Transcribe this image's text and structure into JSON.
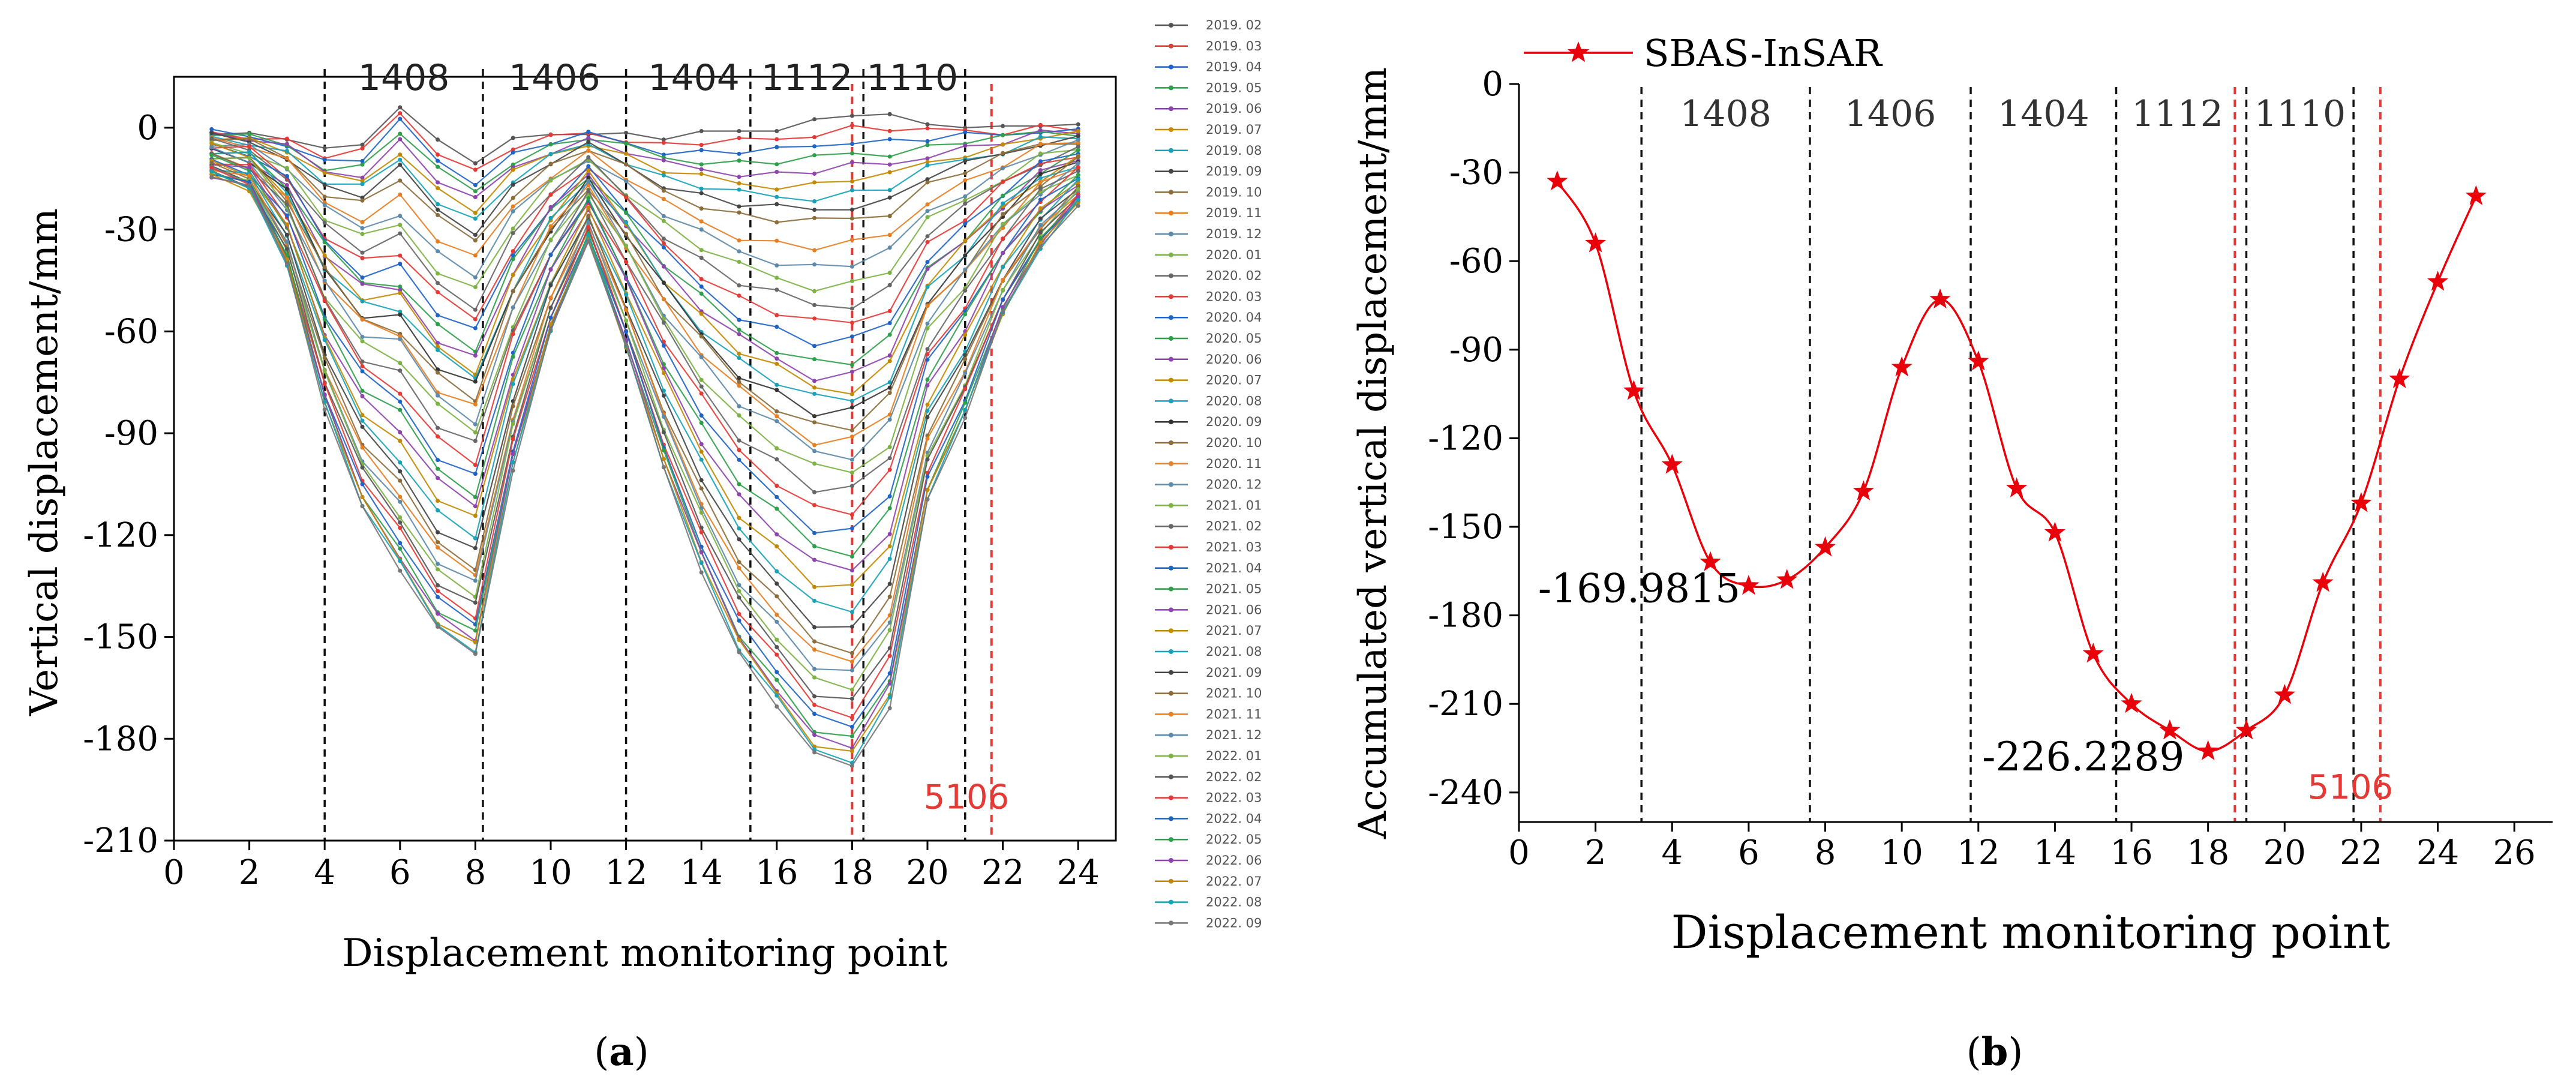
{
  "chart_data": [
    {
      "id": "a",
      "type": "line",
      "panel_label": "a",
      "xlabel": "Displacement monitoring point",
      "ylabel": "Vertical displacement/mm",
      "xlim": [
        0,
        25
      ],
      "ylim": [
        -210,
        15
      ],
      "xticks": [
        0,
        2,
        4,
        6,
        8,
        10,
        12,
        14,
        16,
        18,
        20,
        22,
        24
      ],
      "yticks": [
        0,
        -30,
        -60,
        -90,
        -120,
        -150,
        -180,
        -210
      ],
      "zone_lines": [
        4,
        8.2,
        12,
        15.3,
        18.3,
        21
      ],
      "red_lines": [
        18,
        21.7
      ],
      "zone_labels": [
        {
          "text": "1408",
          "x": 6.1
        },
        {
          "text": "1406",
          "x": 10.1
        },
        {
          "text": "1404",
          "x": 13.8
        },
        {
          "text": "1112",
          "x": 16.8
        },
        {
          "text": "1110",
          "x": 19.6
        }
      ],
      "red_label": {
        "text": "5106",
        "x": 19.9,
        "y": -197
      },
      "x": [
        1,
        2,
        3,
        4,
        5,
        6,
        7,
        8,
        9,
        10,
        11,
        12,
        13,
        14,
        15,
        16,
        17,
        18,
        19,
        20,
        21,
        22,
        23,
        24
      ],
      "final_profile": [
        -14,
        -18,
        -40,
        -82,
        -112,
        -130,
        -148,
        -155,
        -100,
        -60,
        -33,
        -65,
        -100,
        -130,
        -155,
        -170,
        -185,
        -188,
        -170,
        -110,
        -85,
        -55,
        -35,
        -22
      ],
      "early_profile": [
        -1,
        -2,
        -3,
        -7,
        -5,
        7,
        -4,
        -10,
        -4,
        -2,
        -1,
        -2,
        -3,
        -2,
        -1,
        0,
        2,
        4,
        3,
        1,
        1,
        0,
        1,
        0
      ],
      "series": [
        {
          "name": "2019. 02",
          "color": "#555555",
          "weight": 0.0
        },
        {
          "name": "2019. 03",
          "color": "#e53935",
          "weight": 0.02
        },
        {
          "name": "2019. 04",
          "color": "#1e63c6",
          "weight": 0.04
        },
        {
          "name": "2019. 05",
          "color": "#2e9e4a",
          "weight": 0.06
        },
        {
          "name": "2019. 06",
          "color": "#8e44ad",
          "weight": 0.08
        },
        {
          "name": "2019. 07",
          "color": "#c28a00",
          "weight": 0.1
        },
        {
          "name": "2019. 08",
          "color": "#17a2b8",
          "weight": 0.12
        },
        {
          "name": "2019. 09",
          "color": "#444444",
          "weight": 0.14
        },
        {
          "name": "2019. 10",
          "color": "#8a6d3b",
          "weight": 0.16
        },
        {
          "name": "2019. 11",
          "color": "#e67e22",
          "weight": 0.2
        },
        {
          "name": "2019. 12",
          "color": "#5d8aa8",
          "weight": 0.23
        },
        {
          "name": "2020. 01",
          "color": "#7cb342",
          "weight": 0.26
        },
        {
          "name": "2020. 02",
          "color": "#666666",
          "weight": 0.29
        },
        {
          "name": "2020. 03",
          "color": "#e53935",
          "weight": 0.32
        },
        {
          "name": "2020. 04",
          "color": "#1e63c6",
          "weight": 0.35
        },
        {
          "name": "2020. 05",
          "color": "#2e9e4a",
          "weight": 0.38
        },
        {
          "name": "2020. 06",
          "color": "#8e44ad",
          "weight": 0.4
        },
        {
          "name": "2020. 07",
          "color": "#c28a00",
          "weight": 0.42
        },
        {
          "name": "2020. 08",
          "color": "#17a2b8",
          "weight": 0.44
        },
        {
          "name": "2020. 09",
          "color": "#333333",
          "weight": 0.46
        },
        {
          "name": "2020. 10",
          "color": "#8a6d3b",
          "weight": 0.48
        },
        {
          "name": "2020. 11",
          "color": "#e67e22",
          "weight": 0.5
        },
        {
          "name": "2020. 12",
          "color": "#5d8aa8",
          "weight": 0.52
        },
        {
          "name": "2021. 01",
          "color": "#7cb342",
          "weight": 0.55
        },
        {
          "name": "2021. 02",
          "color": "#666666",
          "weight": 0.58
        },
        {
          "name": "2021. 03",
          "color": "#e53935",
          "weight": 0.61
        },
        {
          "name": "2021. 04",
          "color": "#1e63c6",
          "weight": 0.64
        },
        {
          "name": "2021. 05",
          "color": "#2e9e4a",
          "weight": 0.67
        },
        {
          "name": "2021. 06",
          "color": "#8e44ad",
          "weight": 0.7
        },
        {
          "name": "2021. 07",
          "color": "#c28a00",
          "weight": 0.73
        },
        {
          "name": "2021. 08",
          "color": "#17a2b8",
          "weight": 0.76
        },
        {
          "name": "2021. 09",
          "color": "#444444",
          "weight": 0.79
        },
        {
          "name": "2021. 10",
          "color": "#8a6d3b",
          "weight": 0.82
        },
        {
          "name": "2021. 11",
          "color": "#e67e22",
          "weight": 0.84
        },
        {
          "name": "2021. 12",
          "color": "#5d8aa8",
          "weight": 0.86
        },
        {
          "name": "2022. 01",
          "color": "#7cb342",
          "weight": 0.88
        },
        {
          "name": "2022. 02",
          "color": "#555555",
          "weight": 0.9
        },
        {
          "name": "2022. 03",
          "color": "#e53935",
          "weight": 0.92
        },
        {
          "name": "2022. 04",
          "color": "#1e63c6",
          "weight": 0.94
        },
        {
          "name": "2022. 05",
          "color": "#2e9e4a",
          "weight": 0.96
        },
        {
          "name": "2022. 06",
          "color": "#8e44ad",
          "weight": 0.97
        },
        {
          "name": "2022. 07",
          "color": "#c28a00",
          "weight": 0.98
        },
        {
          "name": "2022. 08",
          "color": "#17a2b8",
          "weight": 0.99
        },
        {
          "name": "2022. 09",
          "color": "#777777",
          "weight": 1.0
        }
      ]
    },
    {
      "id": "b",
      "type": "line",
      "panel_label": "b",
      "xlabel": "Displacement monitoring point",
      "ylabel": "Accumulated vertical displacement/mm",
      "xlim": [
        0,
        27
      ],
      "ylim": [
        -250,
        0
      ],
      "xticks": [
        0,
        2,
        4,
        6,
        8,
        10,
        12,
        14,
        16,
        18,
        20,
        22,
        24,
        26
      ],
      "yticks": [
        0,
        -30,
        -60,
        -90,
        -120,
        -150,
        -180,
        -210,
        -240
      ],
      "zone_lines": [
        3.2,
        7.6,
        11.8,
        15.6,
        19,
        21.8
      ],
      "red_lines": [
        18.7,
        22.5
      ],
      "zone_labels": [
        {
          "text": "1408",
          "x": 5.4
        },
        {
          "text": "1406",
          "x": 9.7
        },
        {
          "text": "1404",
          "x": 13.7
        },
        {
          "text": "1112",
          "x": 17.2
        },
        {
          "text": "1110",
          "x": 20.4
        }
      ],
      "red_label": {
        "text": "5106",
        "x": 20.6,
        "y": -238
      },
      "series": [
        {
          "name": "SBAS-InSAR",
          "color": "#e8000b",
          "marker": "star",
          "x": [
            1,
            2,
            3,
            4,
            5,
            6,
            7,
            8,
            9,
            10,
            11,
            12,
            13,
            14,
            15,
            16,
            17,
            18,
            19,
            20,
            21,
            22,
            23,
            24,
            25
          ],
          "values": [
            -33,
            -54,
            -104,
            -129,
            -162,
            -170,
            -168,
            -157,
            -138,
            -96,
            -73,
            -94,
            -137,
            -152,
            -193,
            -210,
            -219,
            -226,
            -219,
            -207,
            -169,
            -142,
            -100,
            -67,
            -38
          ]
        }
      ],
      "annotations": [
        {
          "text": "-169.9815",
          "x": 0.5,
          "y": -171
        },
        {
          "text": "-226.2289",
          "x": 12.1,
          "y": -228
        }
      ]
    }
  ]
}
